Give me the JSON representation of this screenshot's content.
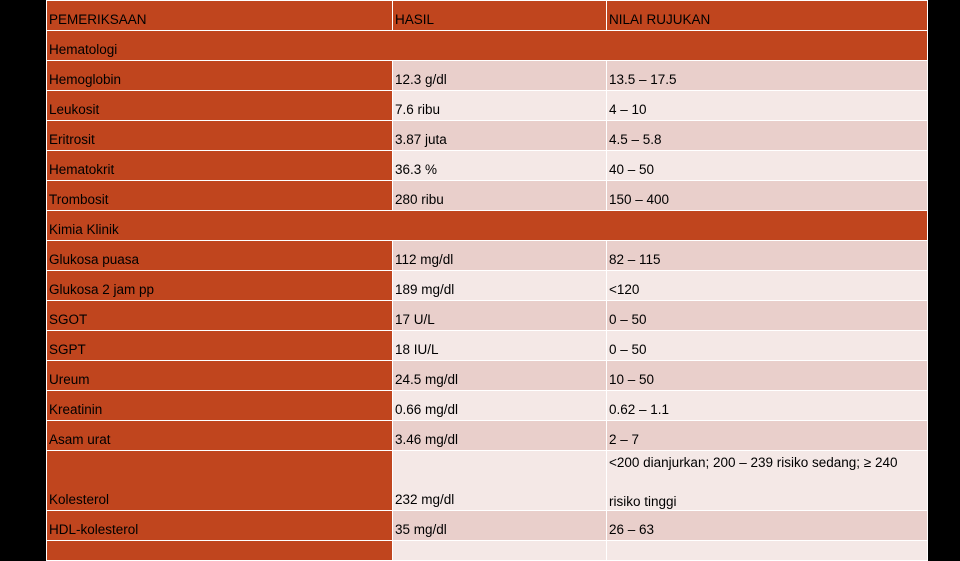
{
  "columns": {
    "test": "PEMERIKSAAN",
    "result": "HASIL",
    "reference": "NILAI RUJUKAN"
  },
  "sections": [
    {
      "title": "Hematologi",
      "rows": [
        {
          "test": "Hemoglobin",
          "result": "12.3 g/dl",
          "reference": "13.5 – 17.5"
        },
        {
          "test": "Leukosit",
          "result": "7.6 ribu",
          "reference": "4 – 10"
        },
        {
          "test": "Eritrosit",
          "result": "3.87 juta",
          "reference": "4.5 – 5.8"
        },
        {
          "test": "Hematokrit",
          "result": "36.3 %",
          "reference": "40 – 50"
        },
        {
          "test": "Trombosit",
          "result": "280 ribu",
          "reference": "150 – 400"
        }
      ]
    },
    {
      "title": "Kimia Klinik",
      "rows": [
        {
          "test": "Glukosa puasa",
          "result": "112 mg/dl",
          "reference": "82 – 115"
        },
        {
          "test": "Glukosa 2 jam pp",
          "result": "189 mg/dl",
          "reference": "<120"
        },
        {
          "test": "SGOT",
          "result": "17 U/L",
          "reference": "0 – 50"
        },
        {
          "test": "SGPT",
          "result": "18 IU/L",
          "reference": "0 – 50"
        },
        {
          "test": "Ureum",
          "result": "24.5 mg/dl",
          "reference": "10 – 50"
        },
        {
          "test": "Kreatinin",
          "result": "0.66 mg/dl",
          "reference": "0.62 – 1.1"
        },
        {
          "test": "Asam urat",
          "result": "3.46 mg/dl",
          "reference": "2 – 7"
        },
        {
          "test": "Kolesterol",
          "result": "232 mg/dl",
          "reference_line1": "<200 dianjurkan; 200 – 239 risiko sedang; ≥ 240",
          "reference_line2": "risiko tinggi"
        },
        {
          "test": "HDL-kolesterol",
          "result": "35 mg/dl",
          "reference": "26 – 63"
        }
      ]
    }
  ]
}
